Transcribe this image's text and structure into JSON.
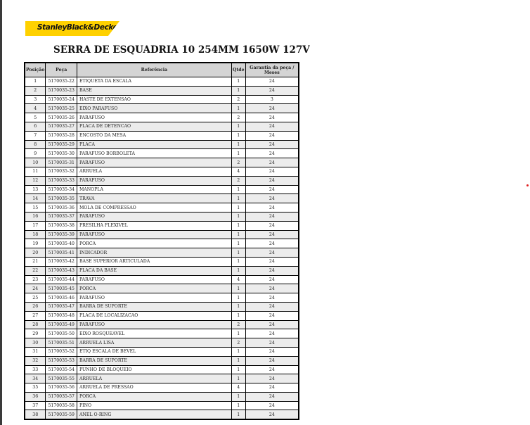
{
  "brand": {
    "logo_text": "StanleyBlack&Decker",
    "color": "#ffd100"
  },
  "title": "SERRA DE ESQUADRIA 10 254MM 1650W 127V",
  "table": {
    "headers": [
      "Posição",
      "Peça",
      "Referência",
      "Qtde",
      "Garantia da peça / Meses"
    ],
    "rows": [
      [
        "1",
        "5170035-22",
        "ETIQUETA DA ESCALA",
        "1",
        "24"
      ],
      [
        "2",
        "5170035-23",
        "BASE",
        "1",
        "24"
      ],
      [
        "3",
        "5170035-24",
        "HASTE DE EXTENSAO",
        "2",
        "3"
      ],
      [
        "4",
        "5170035-25",
        "EIXO PARAFUSO",
        "1",
        "24"
      ],
      [
        "5",
        "5170035-26",
        "PARAFUSO",
        "2",
        "24"
      ],
      [
        "6",
        "5170035-27",
        "PLACA DE DETENCAO",
        "1",
        "24"
      ],
      [
        "7",
        "5170035-28",
        "ENCOSTO DA MESA",
        "1",
        "24"
      ],
      [
        "8",
        "5170035-29",
        "PLACA",
        "1",
        "24"
      ],
      [
        "9",
        "5170035-30",
        "PARAFUSO BORBOLETA",
        "1",
        "24"
      ],
      [
        "10",
        "5170035-31",
        "PARAFUSO",
        "2",
        "24"
      ],
      [
        "11",
        "5170035-32",
        "ARRUELA",
        "4",
        "24"
      ],
      [
        "12",
        "5170035-33",
        "PARAFUSO",
        "2",
        "24"
      ],
      [
        "13",
        "5170035-34",
        "MANOPLA",
        "1",
        "24"
      ],
      [
        "14",
        "5170035-35",
        "TRAVA",
        "1",
        "24"
      ],
      [
        "15",
        "5170035-36",
        "MOLA DE COMPRESSAO",
        "1",
        "24"
      ],
      [
        "16",
        "5170035-37",
        "PARAFUSO",
        "1",
        "24"
      ],
      [
        "17",
        "5170035-38",
        "PRESILHA FLEXIVEL",
        "1",
        "24"
      ],
      [
        "18",
        "5170035-39",
        "PARAFUSO",
        "1",
        "24"
      ],
      [
        "19",
        "5170035-40",
        "PORCA",
        "1",
        "24"
      ],
      [
        "20",
        "5170035-41",
        "INDICADOR",
        "1",
        "24"
      ],
      [
        "21",
        "5170035-42",
        "BASE SUPERIOR ARTICULADA",
        "1",
        "24"
      ],
      [
        "22",
        "5170035-43",
        "PLACA DA BASE",
        "1",
        "24"
      ],
      [
        "23",
        "5170035-44",
        "PARAFUSO",
        "4",
        "24"
      ],
      [
        "24",
        "5170035-45",
        "PORCA",
        "1",
        "24"
      ],
      [
        "25",
        "5170035-46",
        "PARAFUSO",
        "1",
        "24"
      ],
      [
        "26",
        "5170035-47",
        "BARRA DE SUPORTE",
        "1",
        "24"
      ],
      [
        "27",
        "5170035-48",
        "PLACA DE LOCALIZACAO",
        "1",
        "24"
      ],
      [
        "28",
        "5170035-49",
        "PARAFUSO",
        "2",
        "24"
      ],
      [
        "29",
        "5170035-50",
        "EIXO ROSQUEAVEL",
        "1",
        "24"
      ],
      [
        "30",
        "5170035-51",
        "ARRUELA LISA",
        "2",
        "24"
      ],
      [
        "31",
        "5170035-52",
        "ETIQ ESCALA DE BEVEL",
        "1",
        "24"
      ],
      [
        "32",
        "5170035-53",
        "BARRA DE SUPORTE",
        "1",
        "24"
      ],
      [
        "33",
        "5170035-54",
        "PUNHO DE BLOQUEIO",
        "1",
        "24"
      ],
      [
        "34",
        "5170035-55",
        "ARRUELA",
        "1",
        "24"
      ],
      [
        "35",
        "5170035-56",
        "ARRUELA DE PRESSAO",
        "4",
        "24"
      ],
      [
        "36",
        "5170035-57",
        "PORCA",
        "1",
        "24"
      ],
      [
        "37",
        "5170035-58",
        "PINO",
        "1",
        "24"
      ],
      [
        "38",
        "5170035-59",
        "ANEL O-RING",
        "1",
        "24"
      ]
    ]
  }
}
